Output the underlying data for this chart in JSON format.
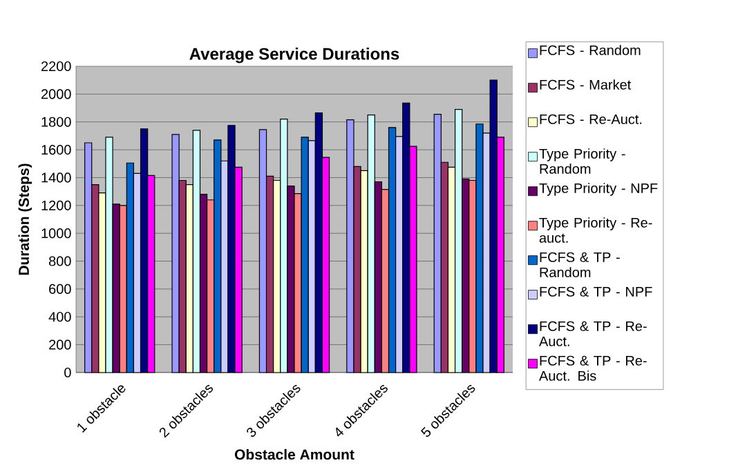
{
  "chart_data": {
    "type": "bar",
    "title": "Average Service Durations",
    "xlabel": "Obstacle Amount",
    "ylabel": "Duration (Steps)",
    "categories": [
      "1 obstacle",
      "2 obstacles",
      "3 obstacles",
      "4 obstacles",
      "5 obstacles"
    ],
    "series": [
      {
        "name": "FCFS - Random",
        "color": "#9999ff",
        "values": [
          1650,
          1710,
          1745,
          1815,
          1855
        ]
      },
      {
        "name": "FCFS - Market",
        "color": "#993366",
        "values": [
          1350,
          1380,
          1410,
          1480,
          1510
        ]
      },
      {
        "name": "FCFS - Re-Auct.",
        "color": "#ffffcc",
        "values": [
          1290,
          1350,
          1380,
          1450,
          1475
        ]
      },
      {
        "name": "Type Priority - Random",
        "color": "#ccffff",
        "values": [
          1690,
          1740,
          1820,
          1850,
          1890
        ]
      },
      {
        "name": "Type Priority - NPF",
        "color": "#660066",
        "values": [
          1210,
          1280,
          1340,
          1370,
          1390
        ]
      },
      {
        "name": "Type Priority - Re-auct.",
        "color": "#ff8080",
        "values": [
          1200,
          1240,
          1285,
          1315,
          1380
        ]
      },
      {
        "name": "FCFS & TP - Random",
        "color": "#0066cc",
        "values": [
          1505,
          1670,
          1690,
          1760,
          1785
        ]
      },
      {
        "name": "FCFS & TP - NPF",
        "color": "#ccccff",
        "values": [
          1430,
          1520,
          1665,
          1695,
          1720
        ]
      },
      {
        "name": "FCFS & TP - Re-Auct.",
        "color": "#000080",
        "values": [
          1750,
          1775,
          1865,
          1935,
          2100
        ]
      },
      {
        "name": "FCFS & TP - Re-Auct. Bis",
        "color": "#ff00ff",
        "values": [
          1415,
          1475,
          1545,
          1625,
          1690
        ]
      }
    ],
    "ylim": [
      0,
      2200
    ],
    "yticks": [
      0,
      200,
      400,
      600,
      800,
      1000,
      1200,
      1400,
      1600,
      1800,
      2000,
      2200
    ],
    "grid": "y",
    "legend": "right"
  }
}
